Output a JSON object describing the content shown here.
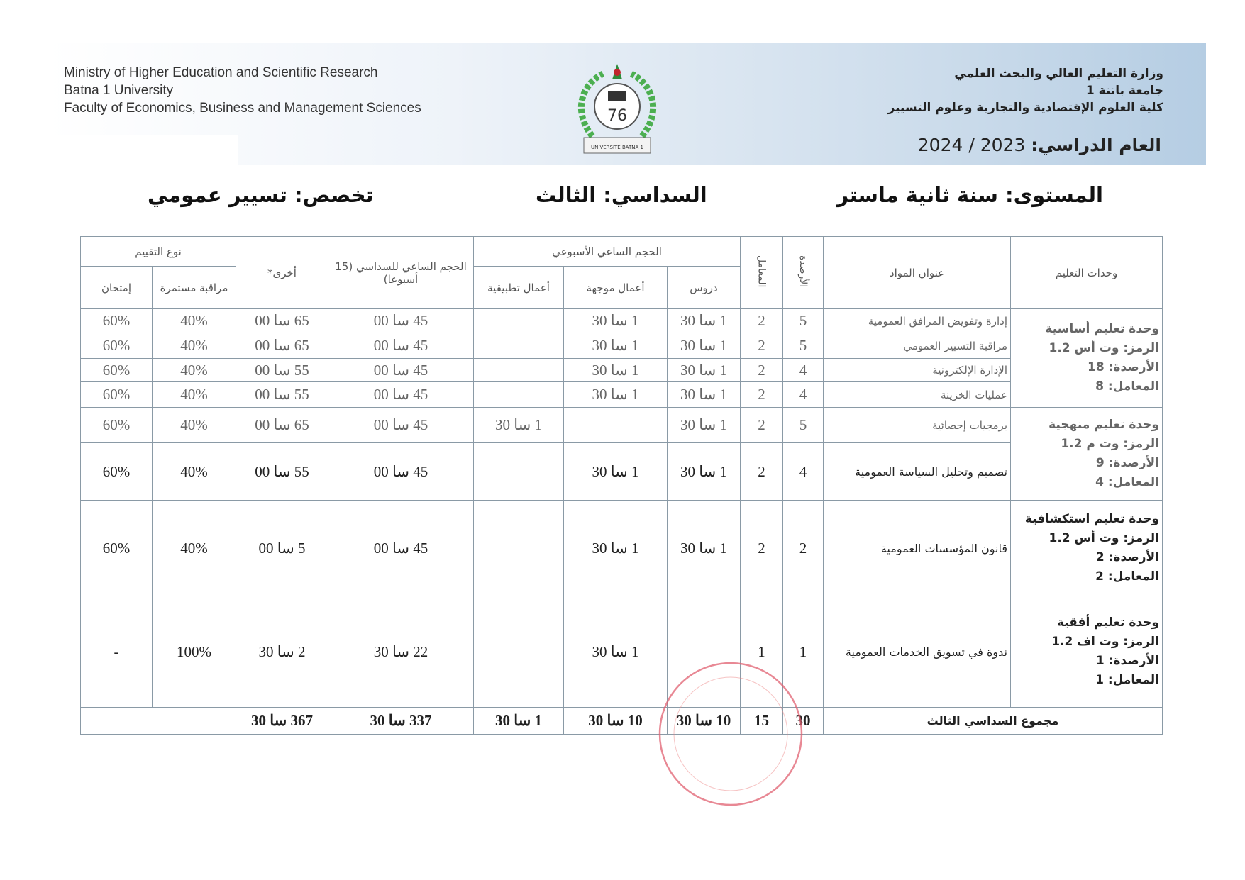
{
  "header": {
    "english_lines": [
      "Ministry of Higher Education and Scientific Research",
      "Batna 1 University",
      "Faculty of Economics, Business and Management Sciences"
    ],
    "arabic_lines": [
      "وزارة التعليم العالي والبحث العلمي",
      "جامعة باتنة 1",
      "كلية العلوم الإقتصادية والتجارية وعلوم التسيير"
    ],
    "academic_year_label": "العام الدراسي:",
    "academic_year_value": "2024 / 2023",
    "logo_text": "UNIVERSITE BATNA 1"
  },
  "info": {
    "level": "المستوى: سنة ثانية ماستر",
    "semester": "السداسي: الثالث",
    "specialty": "تخصص: تسيير عمومي"
  },
  "table": {
    "headers": {
      "units": "وحدات التعليم",
      "subject": "عنوان المواد",
      "credits": "الأرصدة",
      "coefficient": "المعامل",
      "weekly": "الحجم الساعي الأسبوعي",
      "lectures": "دروس",
      "td": "أعمال موجهة",
      "tp": "أعمال تطبيقية",
      "semester_hours": "الحجم الساعي للسداسي (15 أسبوعا)",
      "other": "أخرى*",
      "evaluation": "نوع التقييم",
      "continuous": "مراقبة مستمرة",
      "exam": "إمتحان"
    },
    "units": [
      {
        "name": "وحدة تعليم أساسية",
        "code": "الرمز: وت أس 1.2",
        "credits": "الأرصدة: 18",
        "coef": "المعامل: 8"
      },
      {
        "name": "وحدة تعليم منهجية",
        "code": "الرمز: وت م 1.2",
        "credits": "الأرصدة: 9",
        "coef": "المعامل: 4"
      },
      {
        "name": "وحدة تعليم استكشافية",
        "code": "الرمز: وت أس 1.2",
        "credits": "الأرصدة: 2",
        "coef": "المعامل: 2"
      },
      {
        "name": "وحدة تعليم أفقية",
        "code": "الرمز: وت اف 1.2",
        "credits": "الأرصدة: 1",
        "coef": "المعامل: 1"
      }
    ],
    "rows": [
      {
        "subject": "إدارة وتفويض المرافق العمومية",
        "credits": "5",
        "coef": "2",
        "lectures": "1 سا 30",
        "td": "1 سا 30",
        "tp": "",
        "semester": "45 سا 00",
        "other": "65 سا 00",
        "continuous": "40%",
        "exam": "60%"
      },
      {
        "subject": "مراقبة التسيير العمومي",
        "credits": "5",
        "coef": "2",
        "lectures": "1 سا 30",
        "td": "1 سا 30",
        "tp": "",
        "semester": "45 سا 00",
        "other": "65 سا 00",
        "continuous": "40%",
        "exam": "60%"
      },
      {
        "subject": "الإدارة الإلكترونية",
        "credits": "4",
        "coef": "2",
        "lectures": "1 سا 30",
        "td": "1 سا 30",
        "tp": "",
        "semester": "45 سا 00",
        "other": "55 سا 00",
        "continuous": "40%",
        "exam": "60%"
      },
      {
        "subject": "عمليات الخزينة",
        "credits": "4",
        "coef": "2",
        "lectures": "1 سا 30",
        "td": "1 سا 30",
        "tp": "",
        "semester": "45 سا 00",
        "other": "55 سا 00",
        "continuous": "40%",
        "exam": "60%"
      },
      {
        "subject": "برمجيات إحصائية",
        "credits": "5",
        "coef": "2",
        "lectures": "1 سا 30",
        "td": "",
        "tp": "1 سا 30",
        "semester": "45 سا 00",
        "other": "65 سا 00",
        "continuous": "40%",
        "exam": "60%"
      },
      {
        "subject": "تصميم وتحليل السياسة العمومية",
        "credits": "4",
        "coef": "2",
        "lectures": "1 سا 30",
        "td": "1 سا 30",
        "tp": "",
        "semester": "45 سا 00",
        "other": "55 سا 00",
        "continuous": "40%",
        "exam": "60%"
      },
      {
        "subject": "قانون المؤسسات العمومية",
        "credits": "2",
        "coef": "2",
        "lectures": "1 سا 30",
        "td": "1 سا 30",
        "tp": "",
        "semester": "45 سا 00",
        "other": "5 سا 00",
        "continuous": "40%",
        "exam": "60%"
      },
      {
        "subject": "ندوة في تسويق الخدمات العمومية",
        "credits": "1",
        "coef": "1",
        "lectures": "",
        "td": "1 سا 30",
        "tp": "",
        "semester": "22 سا 30",
        "other": "2 سا 30",
        "continuous": "100%",
        "exam": "-"
      }
    ],
    "total": {
      "label": "مجموع السداسي الثالث",
      "credits": "30",
      "coef": "15",
      "lectures": "10 سا 30",
      "td": "10 سا 30",
      "tp": "1 سا 30",
      "semester": "337 سا 30",
      "other": "367 سا 30"
    }
  }
}
